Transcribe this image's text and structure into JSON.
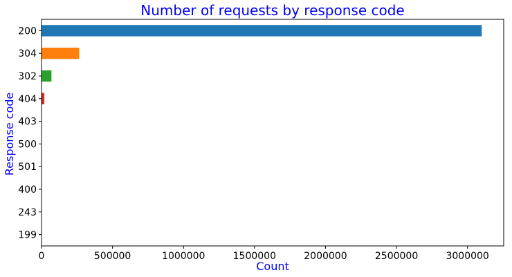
{
  "chart_data": {
    "type": "bar",
    "orientation": "horizontal",
    "title": "Number of requests by response code",
    "xlabel": "Count",
    "ylabel": "Response code",
    "categories": [
      "200",
      "304",
      "302",
      "404",
      "403",
      "500",
      "501",
      "400",
      "243",
      "199"
    ],
    "values": [
      3100000,
      265000,
      70000,
      20000,
      250,
      100,
      40,
      15,
      5,
      3
    ],
    "bar_colors": [
      "#1f77b4",
      "#ff7f0e",
      "#2ca02c",
      "#d62728",
      "#9467bd",
      "#8c564b",
      "#e377c2",
      "#7f7f7f",
      "#bcbd22",
      "#17becf"
    ],
    "xlim": [
      0,
      3255000
    ],
    "xticks": [
      0,
      500000,
      1000000,
      1500000,
      2000000,
      2500000,
      3000000
    ],
    "xtick_labels": [
      "0",
      "500000",
      "1000000",
      "1500000",
      "2000000",
      "2500000",
      "3000000"
    ],
    "grid": false,
    "title_color": "#0000ff",
    "label_color": "#0000ff"
  }
}
